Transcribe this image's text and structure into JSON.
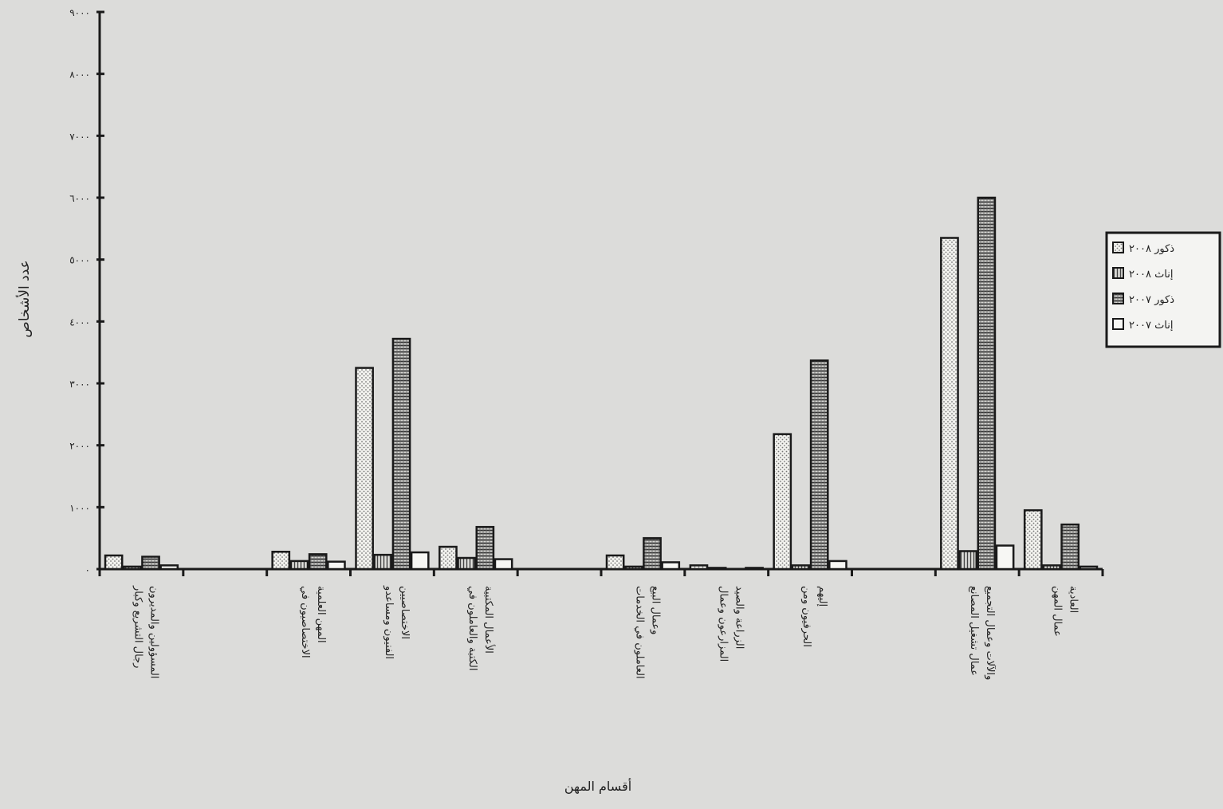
{
  "chart_data": {
    "type": "bar",
    "ylabel": "عدد الأشخاص",
    "xlabel": "أقسام المهن",
    "ylim": [
      0,
      9000
    ],
    "yticks": [
      0,
      1000,
      2000,
      3000,
      4000,
      5000,
      6000,
      7000,
      8000,
      9000
    ],
    "ytick_labels": [
      "٠",
      "١٠٠٠",
      "٢٠٠٠",
      "٣٠٠٠",
      "٤٠٠٠",
      "٥٠٠٠",
      "٦٠٠٠",
      "٧٠٠٠",
      "٨٠٠٠",
      "٩٠٠٠"
    ],
    "grid": false,
    "legend_position": "right",
    "categories": [
      "رجال التشريع وكبار المسؤولين والمديرون",
      "",
      "الاختصاصيون في المهن العلمية",
      "الفنيون ومساعدو الاختصاصيين",
      "الكتبة والعاملون في الأعمال المكتبية",
      "",
      "العاملون في الخدمات وعمال البيع",
      "المزارعون وعمال الزراعة والصيد",
      "الحرفيون ومن إليهم",
      "",
      "عمال تشغيل المصانع والآلات وعمال التجميع",
      "عمال المهن العادية"
    ],
    "series": [
      {
        "name": "ذكور ٢٠٠٨",
        "fill": "dots",
        "values": [
          220,
          0,
          280,
          3250,
          360,
          0,
          220,
          60,
          2180,
          0,
          5350,
          950
        ]
      },
      {
        "name": "إناث ٢٠٠٨",
        "fill": "vlines",
        "values": [
          40,
          0,
          130,
          230,
          180,
          0,
          40,
          20,
          60,
          0,
          290,
          60
        ]
      },
      {
        "name": "ذكور ٢٠٠٧",
        "fill": "hlines",
        "values": [
          200,
          0,
          240,
          3720,
          680,
          0,
          500,
          0,
          3370,
          0,
          6000,
          720
        ]
      },
      {
        "name": "إناث ٢٠٠٧",
        "fill": "plain",
        "values": [
          60,
          0,
          120,
          270,
          160,
          0,
          110,
          20,
          130,
          0,
          380,
          40
        ]
      }
    ]
  }
}
